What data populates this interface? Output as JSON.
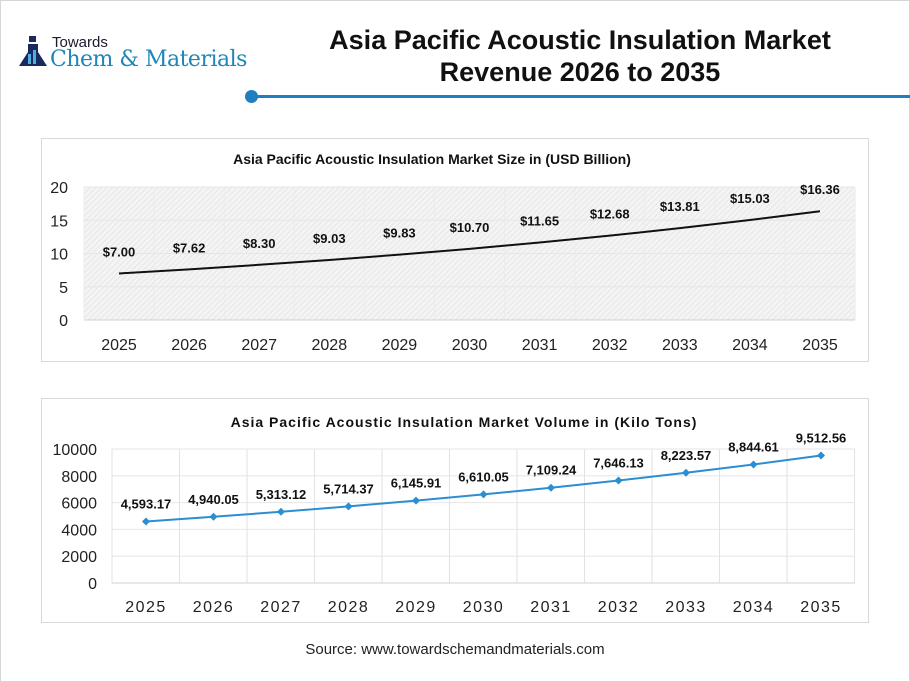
{
  "logo": {
    "line1": "Towards",
    "line2": "Chem & Materials",
    "icon": "flask-icon"
  },
  "header": {
    "title_line1": "Asia Pacific Acoustic Insulation Market",
    "title_line2": "Revenue 2026 to 2035",
    "accent_color": "#1f7fc0"
  },
  "source": "Source: www.towardschemandmaterials.com",
  "chart_data": [
    {
      "type": "line",
      "title": "Asia Pacific Acoustic Insulation Market Size in (USD Billion)",
      "categories": [
        "2025",
        "2026",
        "2027",
        "2028",
        "2029",
        "2030",
        "2031",
        "2032",
        "2033",
        "2034",
        "2035"
      ],
      "values": [
        7.0,
        7.62,
        8.3,
        9.03,
        9.83,
        10.7,
        11.65,
        12.68,
        13.81,
        15.03,
        16.36
      ],
      "data_labels": [
        "$7.00",
        "$7.62",
        "$8.30",
        "$9.03",
        "$9.83",
        "$10.70",
        "$11.65",
        "$12.68",
        "$13.81",
        "$15.03",
        "$16.36"
      ],
      "yticks": [
        "0",
        "5",
        "10",
        "15",
        "20"
      ],
      "ylim": [
        0,
        20
      ],
      "line_color": "#111111",
      "grid": true,
      "legend": "none"
    },
    {
      "type": "line",
      "title": "Asia Pacific Acoustic Insulation Market Volume in (Kilo Tons)",
      "categories": [
        "2025",
        "2026",
        "2027",
        "2028",
        "2029",
        "2030",
        "2031",
        "2032",
        "2033",
        "2034",
        "2035"
      ],
      "values": [
        4593.17,
        4940.05,
        5313.12,
        5714.37,
        6145.91,
        6610.05,
        7109.24,
        7646.13,
        8223.57,
        8844.61,
        9512.56
      ],
      "data_labels": [
        "4,593.17",
        "4,940.05",
        "5,313.12",
        "5,714.37",
        "6,145.91",
        "6,610.05",
        "7,109.24",
        "7,646.13",
        "8,223.57",
        "8,844.61",
        "9,512.56"
      ],
      "yticks": [
        "0",
        "2000",
        "4000",
        "6000",
        "8000",
        "10000"
      ],
      "ylim": [
        0,
        10000
      ],
      "line_color": "#2a8fd0",
      "marker": "diamond",
      "grid": true,
      "legend": "none"
    }
  ]
}
